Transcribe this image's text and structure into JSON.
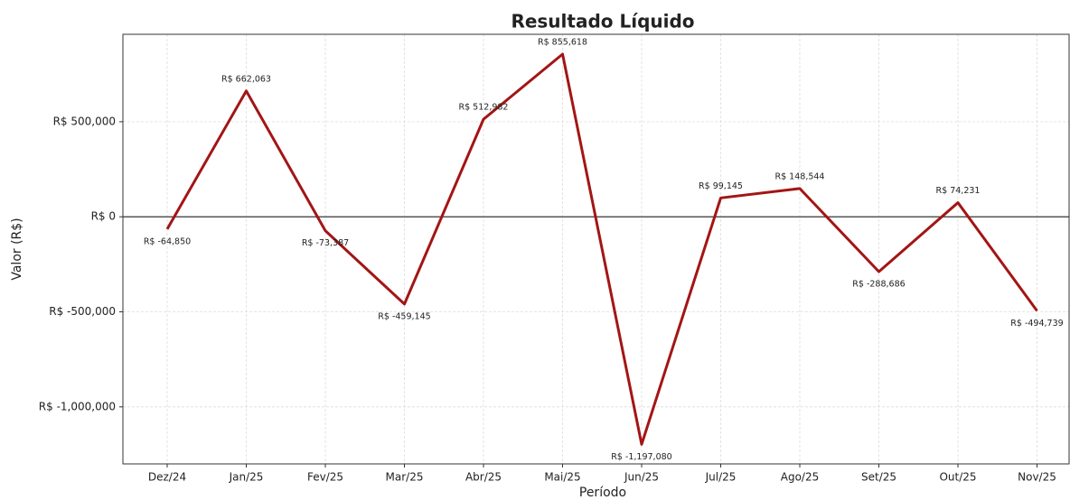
{
  "chart_data": {
    "type": "line",
    "title": "Resultado Líquido",
    "x_label": "Período",
    "y_label": "Valor (R$)",
    "categories": [
      "Dez/24",
      "Jan/25",
      "Fev/25",
      "Mar/25",
      "Abr/25",
      "Mai/25",
      "Jun/25",
      "Jul/25",
      "Ago/25",
      "Set/25",
      "Out/25",
      "Nov/25"
    ],
    "series": [
      {
        "name": "Resultado Líquido",
        "color": "#a31515",
        "values": [
          -64850,
          662063,
          -73387,
          -459145,
          512982,
          855618,
          -1197080,
          99145,
          148544,
          -288686,
          74231,
          -494739
        ],
        "value_labels": [
          "R$ -64,850",
          "R$ 662,063",
          "R$ -73,387",
          "R$ -459,145",
          "R$ 512,982",
          "R$ 855,618",
          "R$ -1,197,080",
          "R$ 99,145",
          "R$ 148,544",
          "R$ -288,686",
          "R$ 74,231",
          "R$ -494,739"
        ]
      }
    ],
    "ylim": [
      -1300000,
      960000
    ],
    "yticks": [
      {
        "value": -1000000,
        "label": "R$ -1,000,000"
      },
      {
        "value": -500000,
        "label": "R$ -500,000"
      },
      {
        "value": 0,
        "label": "R$ 0"
      },
      {
        "value": 500000,
        "label": "R$ 500,000"
      }
    ],
    "grid": true
  }
}
